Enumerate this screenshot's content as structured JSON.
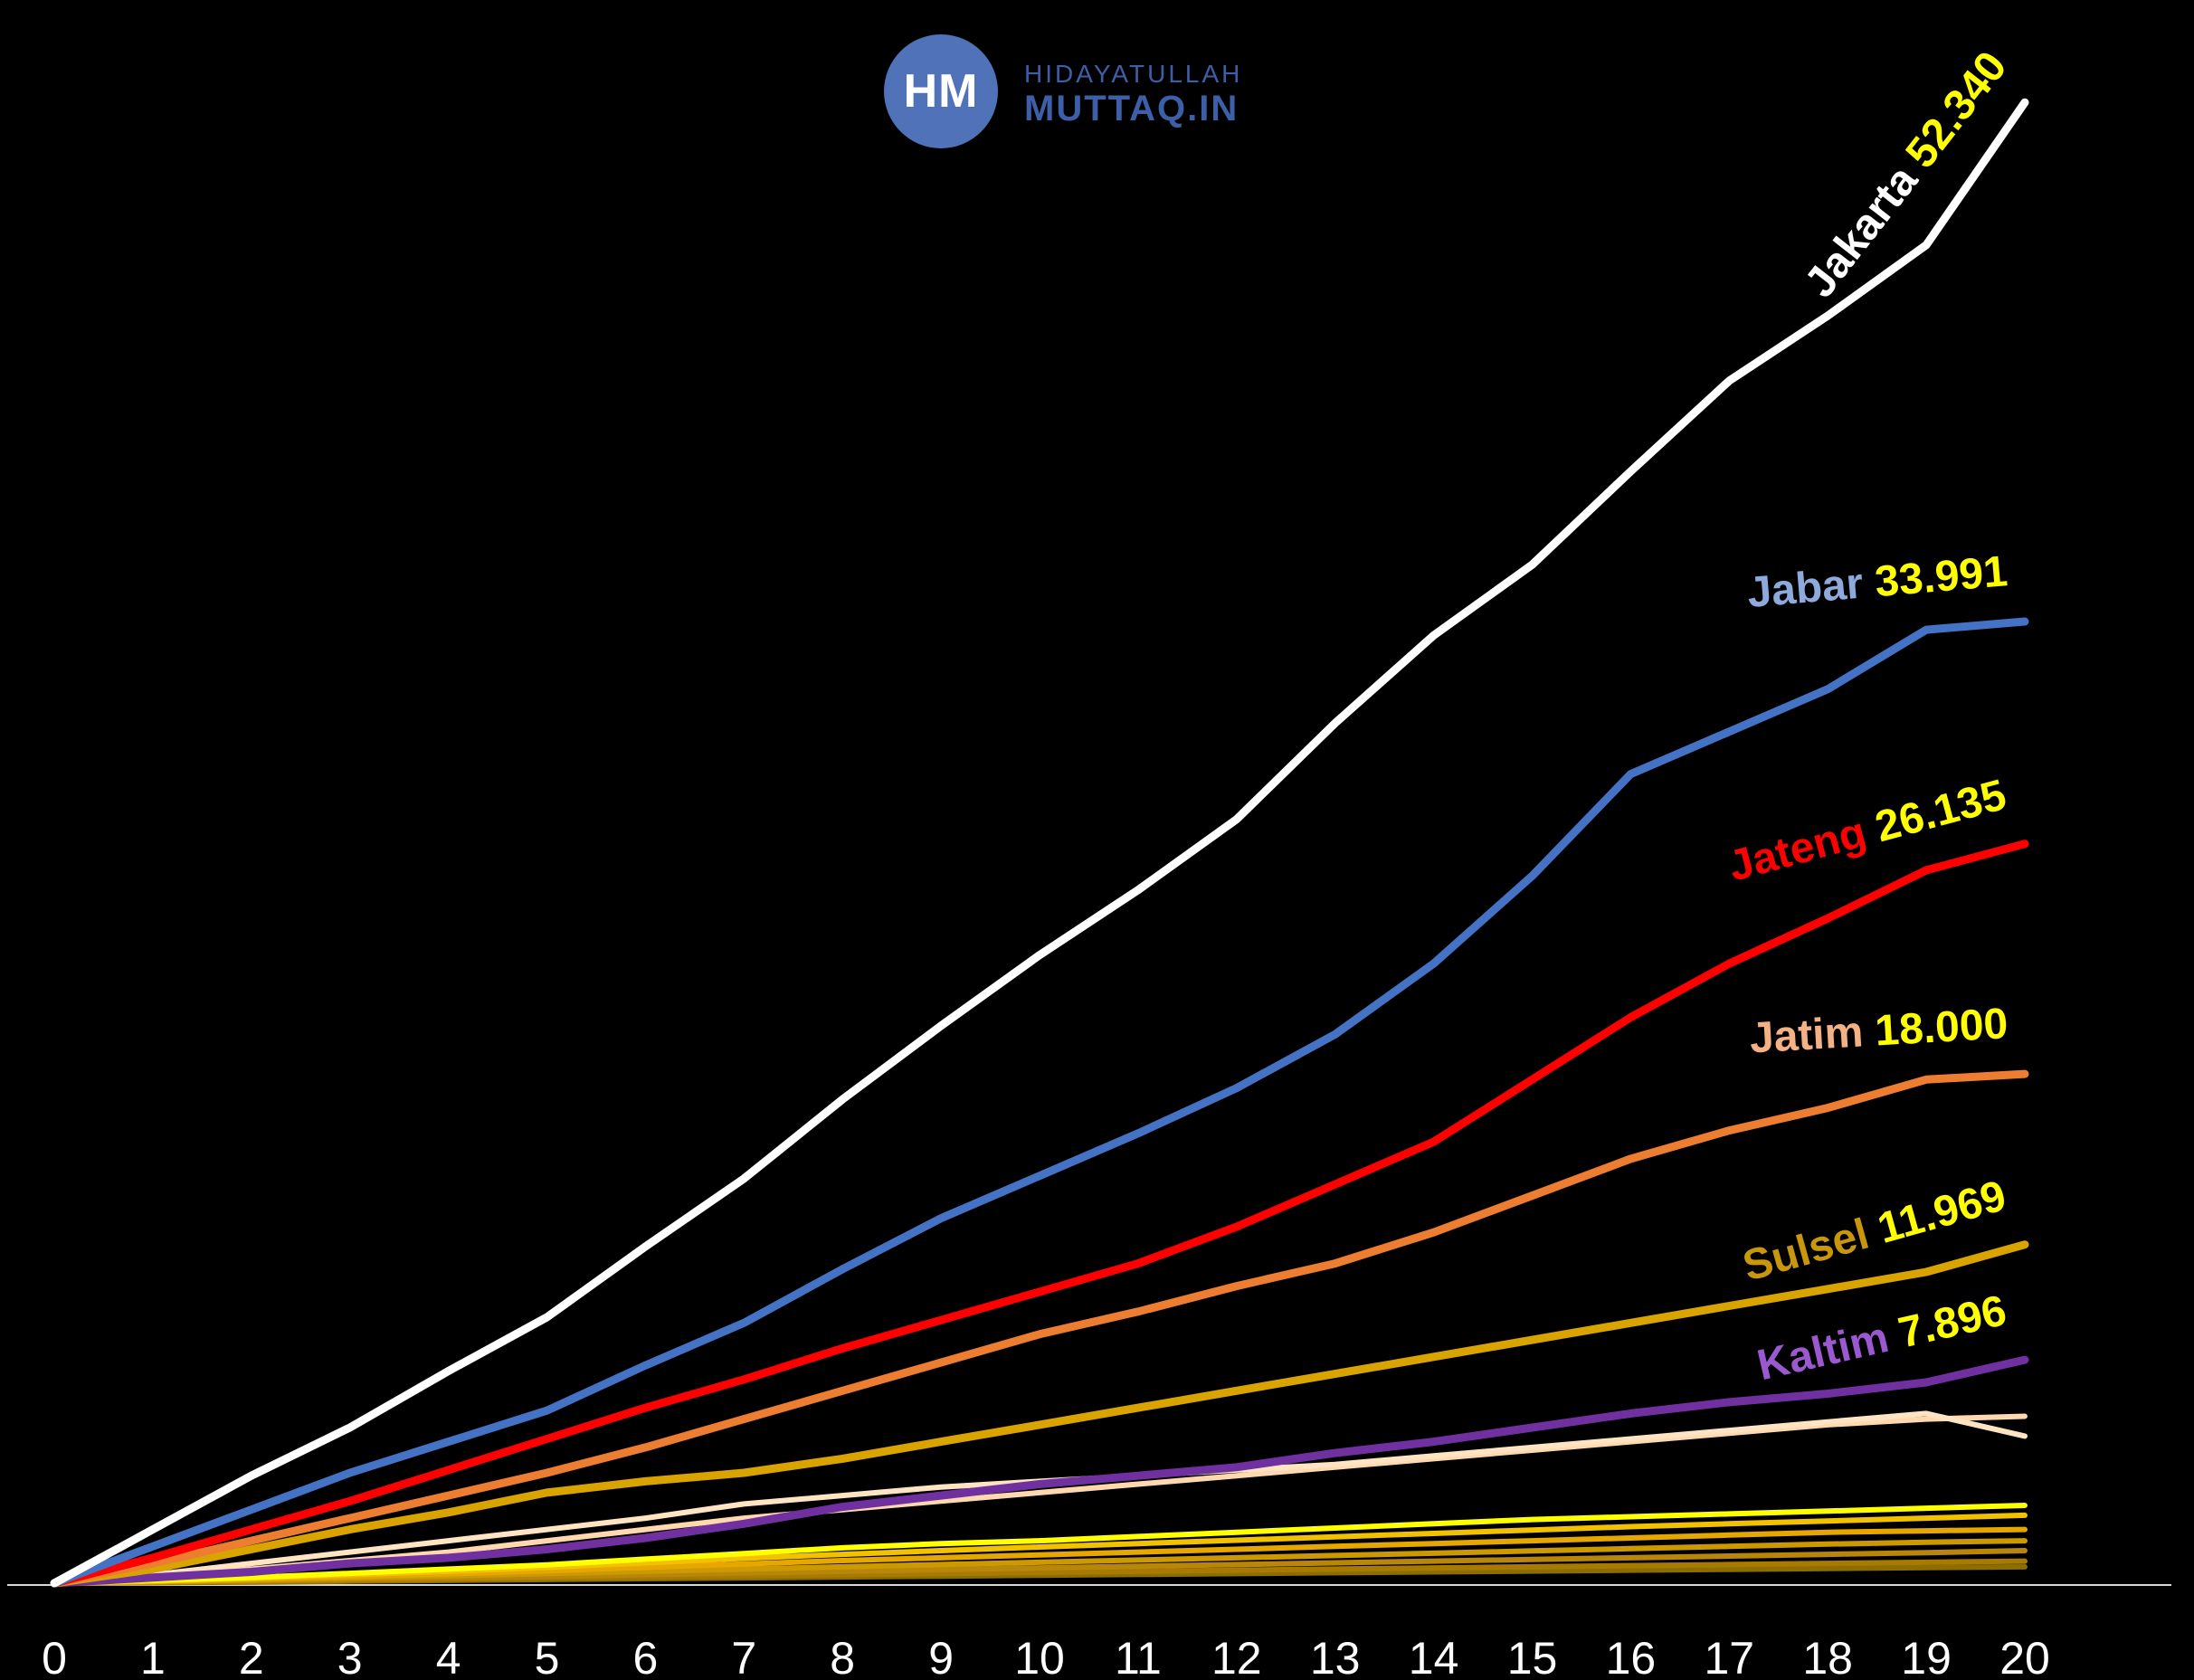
{
  "logo": {
    "initials": "HM",
    "line1": "HIDAYATULLAH",
    "line2": "MUTTAQ.IN"
  },
  "chart_data": {
    "type": "line",
    "x": [
      0,
      1,
      2,
      3,
      4,
      5,
      6,
      7,
      8,
      9,
      10,
      11,
      12,
      13,
      14,
      15,
      16,
      17,
      18,
      19,
      20
    ],
    "xlim": [
      0,
      20
    ],
    "ylim": [
      0,
      55000
    ],
    "grid": false,
    "value_color": "#ffff00",
    "series": [
      {
        "name": "Jakarta",
        "end_label": "52.340",
        "color": "#ffffff",
        "name_color": "#ffffff",
        "labeled": true,
        "values": [
          0,
          1900,
          3800,
          5500,
          7500,
          9400,
          11900,
          14300,
          17100,
          19700,
          22200,
          24500,
          27000,
          30400,
          33500,
          36000,
          39300,
          42500,
          44800,
          47300,
          52340
        ]
      },
      {
        "name": "Jabar",
        "end_label": "33.991",
        "color": "#4472c4",
        "name_color": "#8ea9db",
        "labeled": true,
        "values": [
          0,
          1300,
          2600,
          3900,
          5000,
          6100,
          7700,
          9200,
          11100,
          12900,
          14400,
          15900,
          17500,
          19400,
          21900,
          25000,
          28600,
          30100,
          31600,
          33700,
          33991
        ]
      },
      {
        "name": "Jateng",
        "end_label": "26.135",
        "color": "#ff0000",
        "name_color": "#ff0000",
        "labeled": true,
        "values": [
          0,
          900,
          1900,
          2900,
          4000,
          5100,
          6200,
          7200,
          8300,
          9300,
          10300,
          11300,
          12600,
          14100,
          15600,
          17800,
          20000,
          21900,
          23500,
          25200,
          26135
        ]
      },
      {
        "name": "Jatim",
        "end_label": "18.000",
        "color": "#ed7d31",
        "name_color": "#f4b183",
        "labeled": true,
        "values": [
          0,
          700,
          1500,
          2300,
          3100,
          3900,
          4800,
          5800,
          6800,
          7800,
          8800,
          9600,
          10500,
          11300,
          12400,
          13700,
          15000,
          16000,
          16800,
          17800,
          18000
        ]
      },
      {
        "name": "Sulsel",
        "end_label": "11.969",
        "color": "#d9a300",
        "name_color": "#c9970c",
        "labeled": true,
        "values": [
          0,
          500,
          1200,
          1900,
          2500,
          3200,
          3600,
          3900,
          4400,
          5000,
          5600,
          6200,
          6800,
          7400,
          8000,
          8600,
          9200,
          9800,
          10400,
          11000,
          11969
        ]
      },
      {
        "name": "Kaltim",
        "end_label": "7.896",
        "color": "#7030a0",
        "name_color": "#9b59d0",
        "labeled": true,
        "values": [
          0,
          200,
          400,
          700,
          900,
          1200,
          1600,
          2100,
          2700,
          3100,
          3500,
          3800,
          4100,
          4600,
          5000,
          5500,
          6000,
          6400,
          6700,
          7100,
          7896
        ]
      },
      {
        "name": "",
        "end_label": "",
        "color": "#ffe4c4",
        "name_color": "#ffe4c4",
        "labeled": false,
        "values": [
          0,
          300,
          700,
          1100,
          1500,
          1900,
          2300,
          2800,
          3100,
          3400,
          3600,
          3800,
          4000,
          4200,
          4500,
          4800,
          5100,
          5400,
          5700,
          6000,
          5200
        ]
      },
      {
        "name": "",
        "end_label": "",
        "color": "#ffd8b0",
        "name_color": "#ffd8b0",
        "labeled": false,
        "values": [
          0,
          250,
          500,
          800,
          1100,
          1500,
          1900,
          2300,
          2600,
          2900,
          3200,
          3500,
          3800,
          4100,
          4400,
          4700,
          5000,
          5300,
          5600,
          5800,
          5900
        ]
      },
      {
        "name": "",
        "end_label": "",
        "color": "#ffff00",
        "name_color": "#ffff00",
        "labeled": false,
        "values": [
          0,
          100,
          200,
          350,
          500,
          650,
          850,
          1050,
          1250,
          1400,
          1500,
          1650,
          1800,
          1950,
          2100,
          2250,
          2350,
          2450,
          2550,
          2650,
          2750
        ]
      },
      {
        "name": "",
        "end_label": "",
        "color": "#f2c200",
        "name_color": "#f2c200",
        "labeled": false,
        "values": [
          0,
          80,
          180,
          300,
          420,
          560,
          720,
          880,
          1020,
          1150,
          1280,
          1400,
          1520,
          1640,
          1760,
          1880,
          2000,
          2100,
          2200,
          2300,
          2400
        ]
      },
      {
        "name": "",
        "end_label": "",
        "color": "#e6a800",
        "name_color": "#e6a800",
        "labeled": false,
        "values": [
          0,
          60,
          140,
          230,
          330,
          440,
          560,
          680,
          800,
          900,
          1000,
          1100,
          1200,
          1300,
          1400,
          1500,
          1600,
          1700,
          1800,
          1850,
          1900
        ]
      },
      {
        "name": "",
        "end_label": "",
        "color": "#cc9a00",
        "name_color": "#cc9a00",
        "labeled": false,
        "values": [
          0,
          50,
          110,
          180,
          260,
          340,
          420,
          500,
          580,
          660,
          740,
          820,
          900,
          980,
          1060,
          1140,
          1220,
          1300,
          1380,
          1450,
          1500
        ]
      },
      {
        "name": "",
        "end_label": "",
        "color": "#b8860b",
        "name_color": "#b8860b",
        "labeled": false,
        "values": [
          0,
          40,
          80,
          130,
          180,
          240,
          300,
          360,
          420,
          480,
          540,
          600,
          660,
          720,
          780,
          840,
          900,
          960,
          1020,
          1080,
          1150
        ]
      },
      {
        "name": "",
        "end_label": "",
        "color": "#a87b00",
        "name_color": "#a87b00",
        "labeled": false,
        "values": [
          0,
          30,
          60,
          100,
          140,
          180,
          220,
          260,
          300,
          340,
          380,
          420,
          460,
          500,
          540,
          580,
          620,
          660,
          700,
          740,
          780
        ]
      },
      {
        "name": "",
        "end_label": "",
        "color": "#8c6d00",
        "name_color": "#8c6d00",
        "labeled": false,
        "values": [
          0,
          20,
          40,
          70,
          100,
          130,
          160,
          190,
          220,
          250,
          280,
          310,
          340,
          370,
          400,
          430,
          460,
          490,
          520,
          550,
          580
        ]
      }
    ]
  }
}
